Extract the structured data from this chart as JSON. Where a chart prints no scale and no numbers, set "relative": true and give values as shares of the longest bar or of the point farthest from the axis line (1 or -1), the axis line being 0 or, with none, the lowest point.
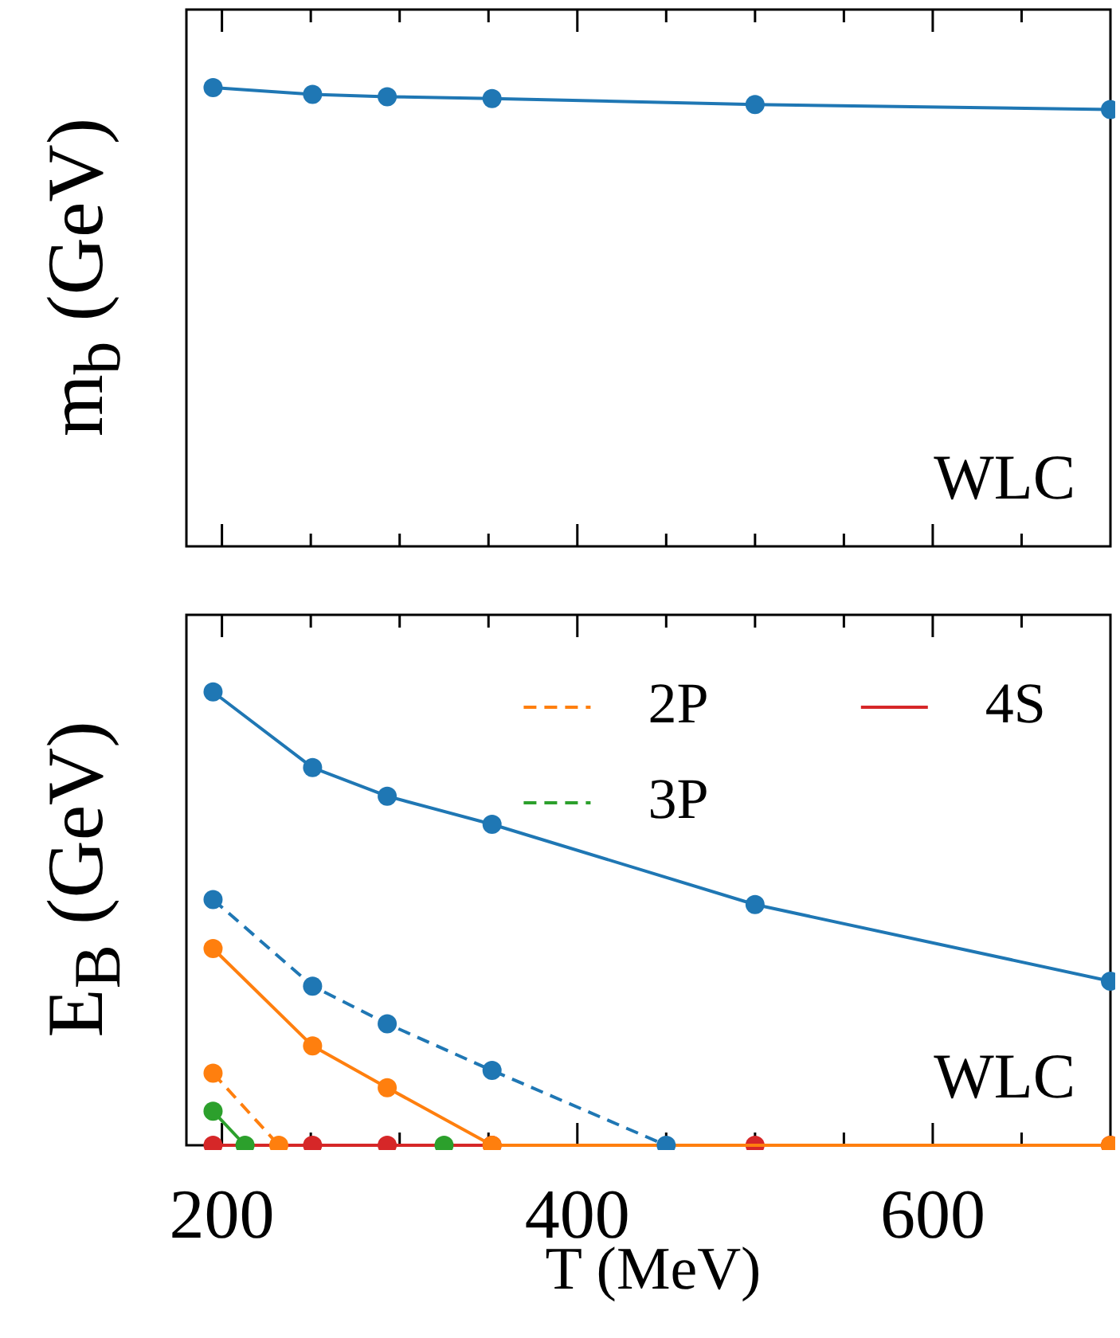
{
  "chart_data": [
    {
      "type": "line",
      "ylabel": "m$_{b}$ (GeV)",
      "relative": true,
      "xlim": [
        180,
        700
      ],
      "xticks": [
        200,
        {
          "value": 250,
          "label": null
        },
        {
          "value": 300,
          "label": null
        },
        {
          "value": 350,
          "label": null
        },
        400,
        {
          "value": 450,
          "label": null
        },
        {
          "value": 500,
          "label": null
        },
        {
          "value": 550,
          "label": null
        },
        600,
        {
          "value": 650,
          "label": null
        }
      ],
      "tick_labels": false,
      "marker": "circle",
      "annotations": [
        "WLC"
      ],
      "series": [
        {
          "color": "#1f77b4",
          "x": [
            195,
            251,
            293,
            352,
            500,
            700
          ],
          "values": [
            1,
            0.985,
            0.98,
            0.976,
            0.963,
            0.952
          ]
        }
      ]
    },
    {
      "type": "line",
      "ylabel": "E$_{B}$ (GeV)",
      "xlabel": "T (MeV)",
      "relative": true,
      "xlim": [
        180,
        700
      ],
      "xticks": [
        200,
        {
          "value": 250,
          "label": null
        },
        {
          "value": 300,
          "label": null
        },
        {
          "value": 350,
          "label": null
        },
        400,
        {
          "value": 450,
          "label": null
        },
        {
          "value": 500,
          "label": null
        },
        {
          "value": 550,
          "label": null
        },
        600,
        {
          "value": 650,
          "label": null
        }
      ],
      "tick_labels": "x",
      "marker": "circle",
      "legend": "top right",
      "annotations": [
        "WLC"
      ],
      "series": [
        {
          "color": "#1f77b4",
          "line_style": "solid",
          "x": [
            195,
            251,
            293,
            352,
            500,
            700
          ],
          "values": [
            1,
            0.833,
            0.77,
            0.708,
            0.531,
            0.362
          ]
        },
        {
          "color": "#1f77b4",
          "line_style": "dashed",
          "x": [
            195,
            251,
            293,
            352,
            450
          ],
          "values": [
            0.542,
            0.351,
            0.268,
            0.165,
            0
          ]
        },
        {
          "color": "#ff7f0e",
          "line_style": "solid",
          "x": [
            195,
            251,
            293,
            352,
            700
          ],
          "values": [
            0.434,
            0.219,
            0.127,
            0,
            0
          ]
        },
        {
          "name": "2P",
          "color": "#ff7f0e",
          "line_style": "dashed",
          "x": [
            195,
            232
          ],
          "values": [
            0.159,
            0
          ]
        },
        {
          "color": "#2ca02c",
          "line_style": "solid",
          "x": [
            195,
            213
          ],
          "values": [
            0.075,
            0
          ]
        },
        {
          "name": "3P",
          "color": "#2ca02c",
          "line_style": "dashed",
          "x": [
            325
          ],
          "values": [
            0
          ]
        },
        {
          "name": "4S",
          "color": "#d62728",
          "line_style": "solid",
          "x": [
            195,
            251,
            293,
            352,
            500,
            700
          ],
          "values": [
            0,
            0,
            0,
            0,
            0,
            0
          ]
        }
      ]
    }
  ]
}
